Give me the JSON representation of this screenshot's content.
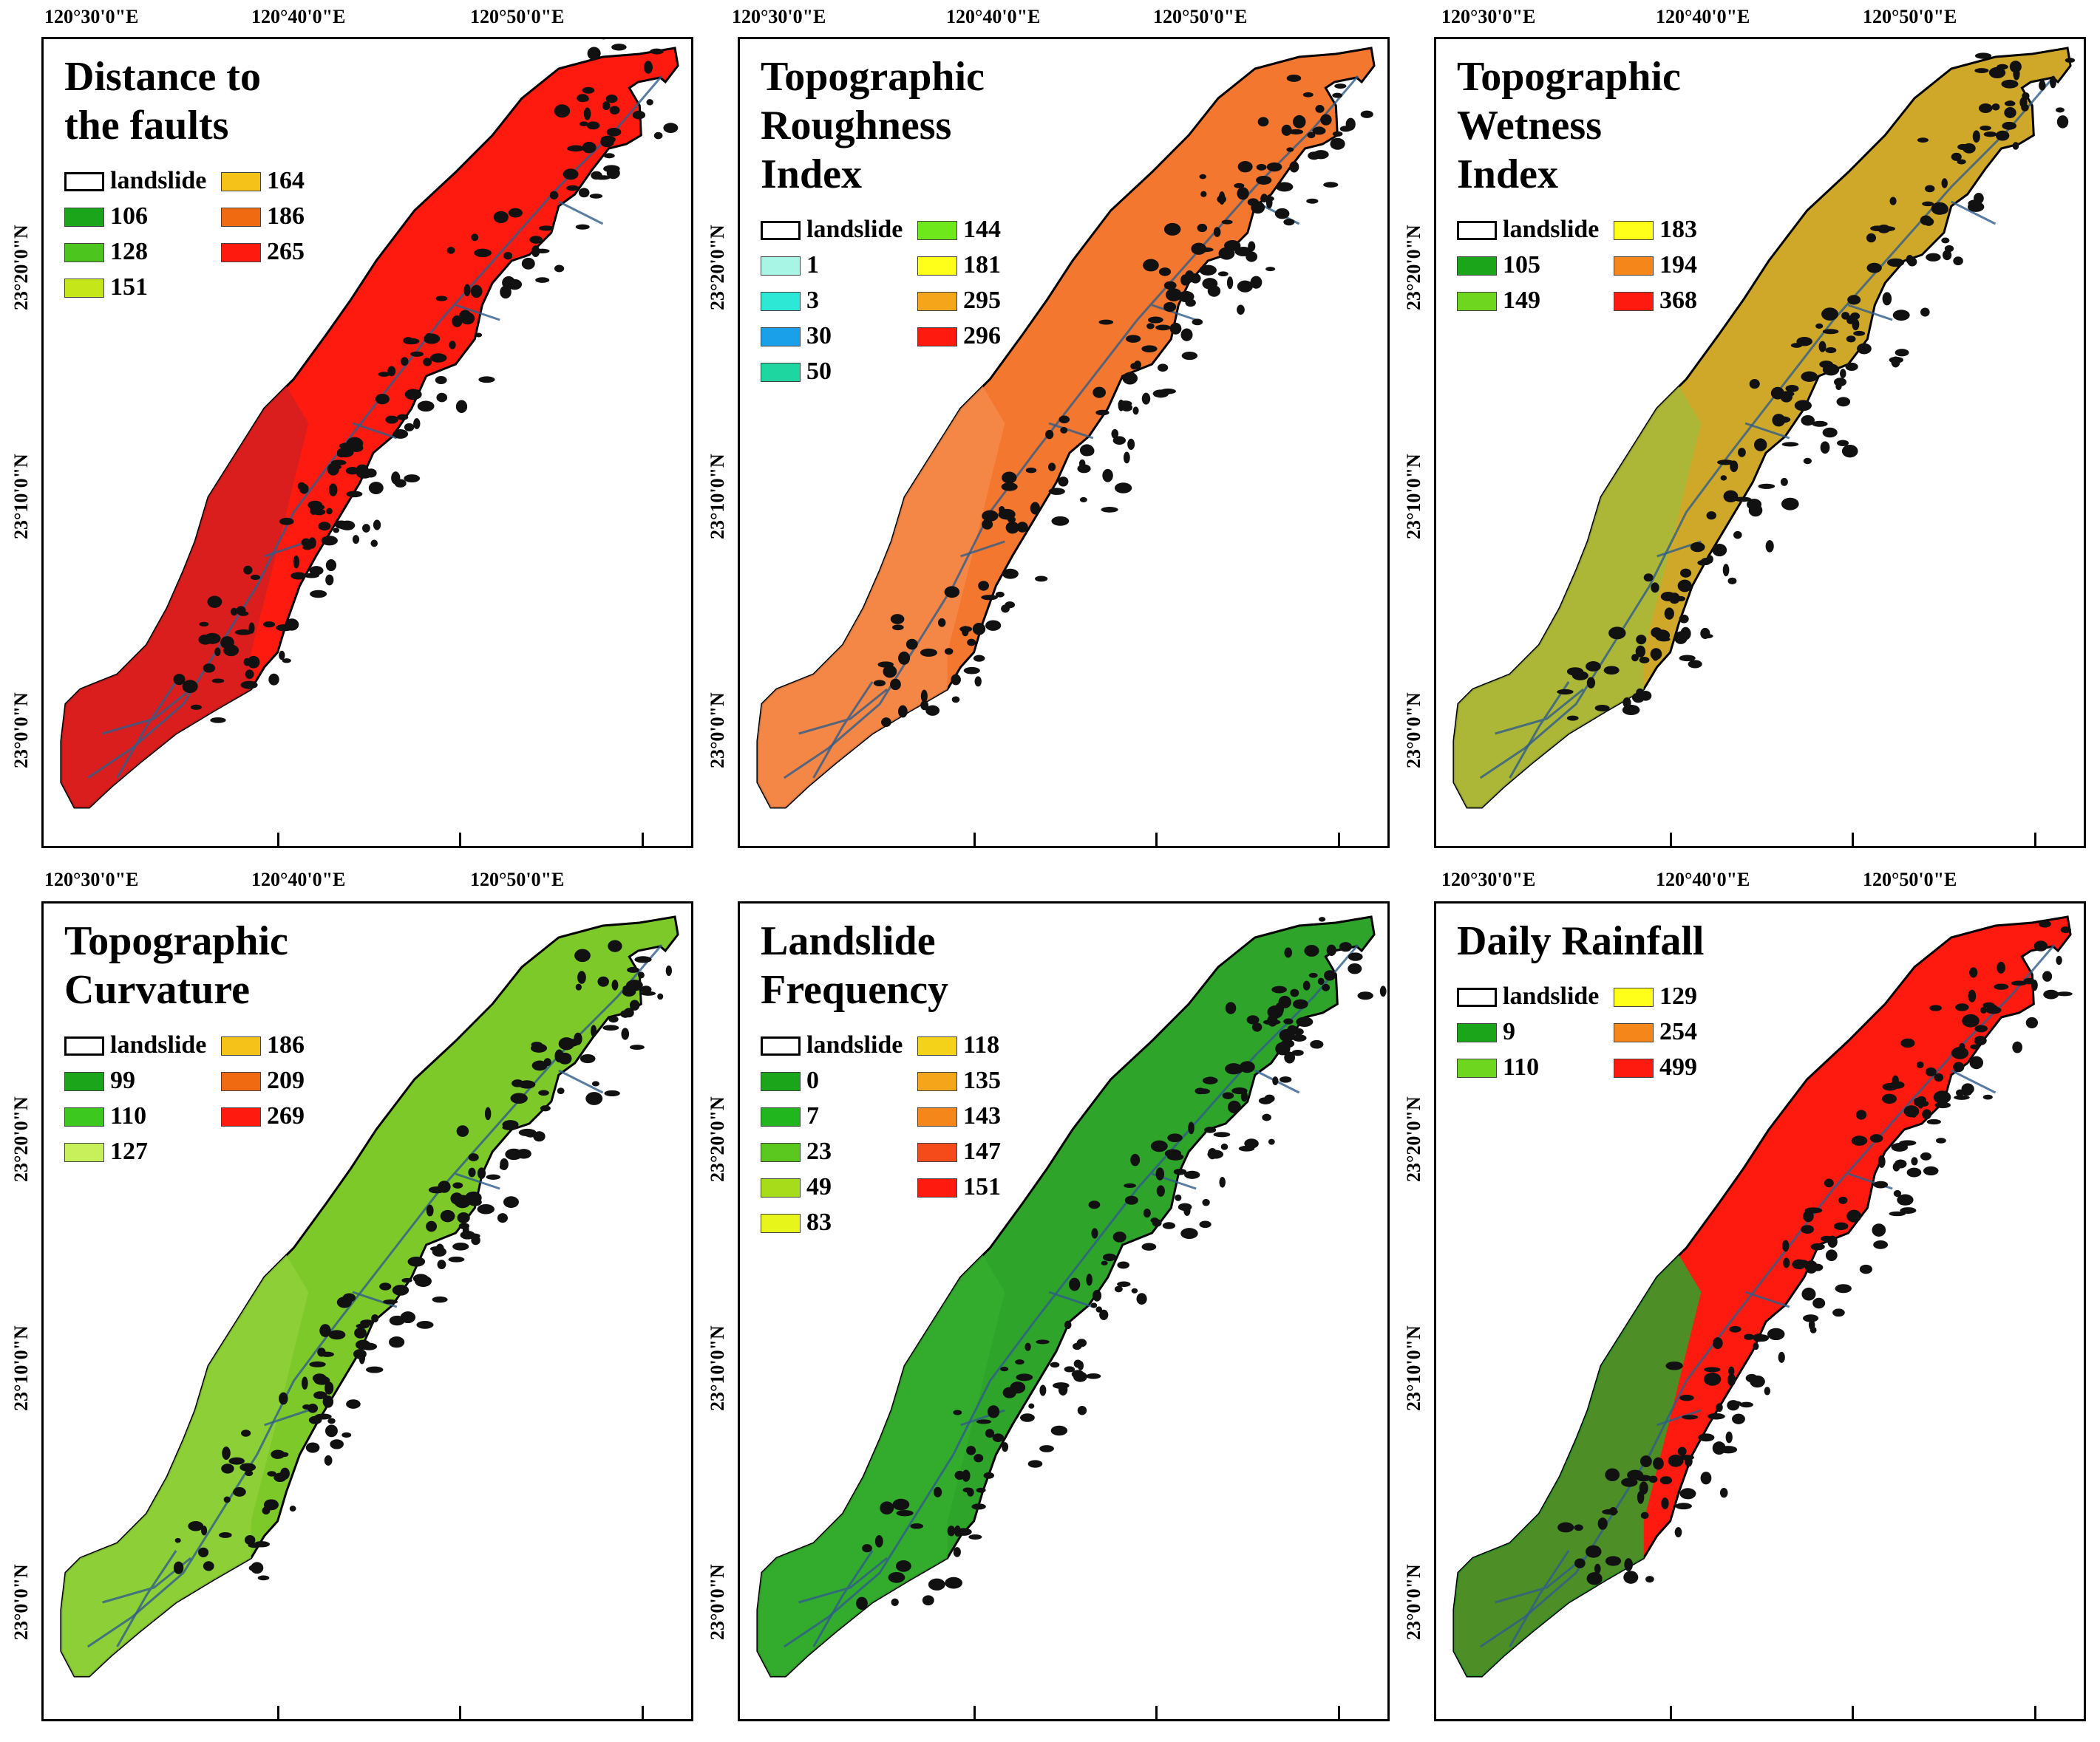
{
  "coordinates": {
    "lon_labels": [
      "120°30'0\"E",
      "120°40'0\"E",
      "120°50'0\"E"
    ],
    "lat_labels": [
      "23°20'0\"N",
      "23°10'0\"N",
      "23°0'0\"N"
    ]
  },
  "panels": [
    {
      "title_lines": [
        "Distance to",
        "the faults"
      ],
      "fill": "#ff1a10",
      "fill_sw": "#d42020",
      "legend": [
        {
          "label": "landslide",
          "color": "#ffffff"
        },
        {
          "label": "106",
          "color": "#1aa51a"
        },
        {
          "label": "128",
          "color": "#4cc61e"
        },
        {
          "label": "151",
          "color": "#c5e619"
        },
        {
          "label": "164",
          "color": "#f5c21a"
        },
        {
          "label": "186",
          "color": "#f06a12"
        },
        {
          "label": "265",
          "color": "#ff1a10"
        }
      ]
    },
    {
      "title_lines": [
        "Topographic",
        "Roughness",
        "Index"
      ],
      "fill": "#f3772e",
      "fill_sw": "#f58a4a",
      "legend": [
        {
          "label": "landslide",
          "color": "#ffffff"
        },
        {
          "label": "1",
          "color": "#a8f5e6"
        },
        {
          "label": "3",
          "color": "#2ee8d6"
        },
        {
          "label": "30",
          "color": "#1aa0e8"
        },
        {
          "label": "50",
          "color": "#1ed6a0"
        },
        {
          "label": "144",
          "color": "#6ee81a"
        },
        {
          "label": "181",
          "color": "#ffff1a"
        },
        {
          "label": "295",
          "color": "#f5a51a"
        },
        {
          "label": "296",
          "color": "#ff1a10"
        }
      ]
    },
    {
      "title_lines": [
        "Topographic",
        "Wetness",
        "Index"
      ],
      "fill": "#cfa82a",
      "fill_sw": "#a6b83a",
      "legend": [
        {
          "label": "landslide",
          "color": "#ffffff"
        },
        {
          "label": "105",
          "color": "#1aa51a"
        },
        {
          "label": "149",
          "color": "#6ed61e"
        },
        {
          "label": "183",
          "color": "#ffff1a"
        },
        {
          "label": "194",
          "color": "#f5871a"
        },
        {
          "label": "368",
          "color": "#ff1a10"
        }
      ]
    },
    {
      "title_lines": [
        "Topographic",
        "Curvature"
      ],
      "fill": "#7ec92a",
      "fill_sw": "#8ed03a",
      "legend": [
        {
          "label": "landslide",
          "color": "#ffffff"
        },
        {
          "label": "99",
          "color": "#1aa51a"
        },
        {
          "label": "110",
          "color": "#3cc81e"
        },
        {
          "label": "127",
          "color": "#c8f05a"
        },
        {
          "label": "186",
          "color": "#f5c21a"
        },
        {
          "label": "209",
          "color": "#f06a12"
        },
        {
          "label": "269",
          "color": "#ff1a10"
        }
      ]
    },
    {
      "title_lines": [
        "Landslide",
        "Frequency"
      ],
      "fill": "#2ea52a",
      "fill_sw": "#34ad2e",
      "legend": [
        {
          "label": "landslide",
          "color": "#ffffff"
        },
        {
          "label": "0",
          "color": "#1aa51a"
        },
        {
          "label": "7",
          "color": "#22b61e"
        },
        {
          "label": "23",
          "color": "#5ac81e"
        },
        {
          "label": "49",
          "color": "#a6dc1a"
        },
        {
          "label": "83",
          "color": "#e8f51a"
        },
        {
          "label": "118",
          "color": "#f5d21a"
        },
        {
          "label": "135",
          "color": "#f5a51a"
        },
        {
          "label": "143",
          "color": "#f5871a"
        },
        {
          "label": "147",
          "color": "#f54a1a"
        },
        {
          "label": "151",
          "color": "#ff1a10"
        }
      ]
    },
    {
      "title_lines": [
        "Daily Rainfall"
      ],
      "fill": "#ff1a10",
      "fill_sw": "#2ea52a",
      "legend": [
        {
          "label": "landslide",
          "color": "#ffffff"
        },
        {
          "label": "9",
          "color": "#1aa51a"
        },
        {
          "label": "110",
          "color": "#6ed61e"
        },
        {
          "label": "129",
          "color": "#ffff1a"
        },
        {
          "label": "254",
          "color": "#f5871a"
        },
        {
          "label": "499",
          "color": "#ff1a10"
        }
      ]
    }
  ]
}
